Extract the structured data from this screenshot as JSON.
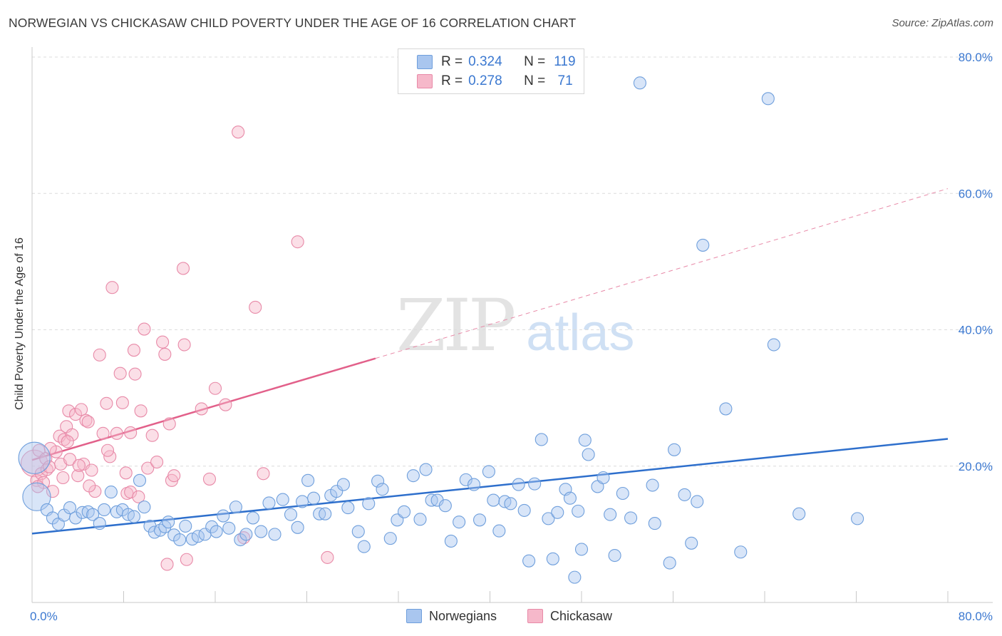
{
  "header": {
    "title": "NORWEGIAN VS CHICKASAW CHILD POVERTY UNDER THE AGE OF 16 CORRELATION CHART",
    "source": "Source: ZipAtlas.com"
  },
  "watermark": {
    "zip": "ZIP",
    "atlas": "atlas"
  },
  "legend": {
    "rows": [
      {
        "r_label": "R =",
        "r_value": "0.324",
        "n_label": "N =",
        "n_value": "119",
        "color": "#a9c6ef"
      },
      {
        "r_label": "R =",
        "r_value": "0.278",
        "n_label": "N =",
        "n_value": " 71",
        "color": "#f6b8ca"
      }
    ]
  },
  "bottom_legend": {
    "series1": "Norwegians",
    "series2": "Chickasaw"
  },
  "colors": {
    "blue_fill": "#a9c6ef",
    "blue_stroke": "#6f9fdc",
    "blue_line": "#2e6fcc",
    "pink_fill": "#f6b8ca",
    "pink_stroke": "#e88aa8",
    "pink_line": "#e2608a",
    "tick_text": "#3b78d0",
    "grid": "#dcdcdc"
  },
  "chart_data": {
    "type": "scatter",
    "title": "NORWEGIAN VS CHICKASAW CHILD POVERTY UNDER THE AGE OF 16 CORRELATION CHART",
    "xlabel": "",
    "ylabel": "Child Poverty Under the Age of 16",
    "xlim": [
      0,
      80
    ],
    "ylim": [
      0,
      80
    ],
    "x_tick_labels": [
      "0.0%",
      "80.0%"
    ],
    "y_tick_labels": [
      "20.0%",
      "40.0%",
      "60.0%",
      "80.0%"
    ],
    "y_ticks": [
      20,
      40,
      60,
      80
    ],
    "grid": "horizontal dashed",
    "legend_position": "top-center",
    "series": [
      {
        "name": "Norwegians",
        "r": 0.324,
        "n": 119,
        "trend": {
          "x": [
            0,
            80
          ],
          "y": [
            10.1,
            24.0
          ],
          "style": "solid"
        },
        "points": [
          [
            0.2,
            21.2,
            2.6
          ],
          [
            0.4,
            15.5,
            2.3
          ],
          [
            1.3,
            13.6,
            1.0
          ],
          [
            1.8,
            12.4,
            1.0
          ],
          [
            2.3,
            11.5,
            1.0
          ],
          [
            2.8,
            12.8,
            1.0
          ],
          [
            3.3,
            13.9,
            1.0
          ],
          [
            3.8,
            12.4,
            1.0
          ],
          [
            4.4,
            13.2,
            1.0
          ],
          [
            4.9,
            13.3,
            1.0
          ],
          [
            5.3,
            12.9,
            1.0
          ],
          [
            5.9,
            11.6,
            1.0
          ],
          [
            6.3,
            13.6,
            1.0
          ],
          [
            6.9,
            16.2,
            1.0
          ],
          [
            7.4,
            13.3,
            1.0
          ],
          [
            7.9,
            13.6,
            1.0
          ],
          [
            8.4,
            12.9,
            1.0
          ],
          [
            8.9,
            12.6,
            1.0
          ],
          [
            9.4,
            17.9,
            1.0
          ],
          [
            9.8,
            14.0,
            1.0
          ],
          [
            10.3,
            11.2,
            1.0
          ],
          [
            10.7,
            10.3,
            1.0
          ],
          [
            11.2,
            10.6,
            1.0
          ],
          [
            11.6,
            11.1,
            1.0
          ],
          [
            11.9,
            11.8,
            1.0
          ],
          [
            12.4,
            9.9,
            1.0
          ],
          [
            12.9,
            9.2,
            1.0
          ],
          [
            13.4,
            11.2,
            1.0
          ],
          [
            14.0,
            9.3,
            1.0
          ],
          [
            14.5,
            9.7,
            1.0
          ],
          [
            15.1,
            10.0,
            1.0
          ],
          [
            15.7,
            11.1,
            1.0
          ],
          [
            16.1,
            10.4,
            1.0
          ],
          [
            16.7,
            12.7,
            1.0
          ],
          [
            17.2,
            10.9,
            1.0
          ],
          [
            17.8,
            14.0,
            1.0
          ],
          [
            18.2,
            9.2,
            1.0
          ],
          [
            18.7,
            10.0,
            1.0
          ],
          [
            19.3,
            12.4,
            1.0
          ],
          [
            20.0,
            10.4,
            1.0
          ],
          [
            20.7,
            14.6,
            1.0
          ],
          [
            21.2,
            10.0,
            1.0
          ],
          [
            21.9,
            15.1,
            1.0
          ],
          [
            22.6,
            12.9,
            1.0
          ],
          [
            23.2,
            11.0,
            1.0
          ],
          [
            23.6,
            14.8,
            1.0
          ],
          [
            24.1,
            17.9,
            1.0
          ],
          [
            24.6,
            15.3,
            1.0
          ],
          [
            25.1,
            13.0,
            1.0
          ],
          [
            25.6,
            13.0,
            1.0
          ],
          [
            26.1,
            15.7,
            1.0
          ],
          [
            26.6,
            16.3,
            1.0
          ],
          [
            27.2,
            17.3,
            1.0
          ],
          [
            27.6,
            13.9,
            1.0
          ],
          [
            28.5,
            10.4,
            1.0
          ],
          [
            29.0,
            8.2,
            1.0
          ],
          [
            29.4,
            14.5,
            1.0
          ],
          [
            30.2,
            17.8,
            1.0
          ],
          [
            30.6,
            16.6,
            1.0
          ],
          [
            31.3,
            9.4,
            1.0
          ],
          [
            31.9,
            12.1,
            1.0
          ],
          [
            32.5,
            13.3,
            1.0
          ],
          [
            33.3,
            18.6,
            1.0
          ],
          [
            33.9,
            12.2,
            1.0
          ],
          [
            34.4,
            19.5,
            1.0
          ],
          [
            34.9,
            15.0,
            1.0
          ],
          [
            35.4,
            15.0,
            1.0
          ],
          [
            36.1,
            14.2,
            1.0
          ],
          [
            36.6,
            9.0,
            1.0
          ],
          [
            37.3,
            11.8,
            1.0
          ],
          [
            37.9,
            18.0,
            1.0
          ],
          [
            38.6,
            17.3,
            1.0
          ],
          [
            39.1,
            12.1,
            1.0
          ],
          [
            39.9,
            19.2,
            1.0
          ],
          [
            40.3,
            15.0,
            1.0
          ],
          [
            40.8,
            10.5,
            1.0
          ],
          [
            41.3,
            14.8,
            1.0
          ],
          [
            41.8,
            14.5,
            1.0
          ],
          [
            42.5,
            17.3,
            1.0
          ],
          [
            43.0,
            13.5,
            1.0
          ],
          [
            43.4,
            6.1,
            1.0
          ],
          [
            43.9,
            17.4,
            1.0
          ],
          [
            44.5,
            23.9,
            1.0
          ],
          [
            45.1,
            12.3,
            1.0
          ],
          [
            45.5,
            6.4,
            1.0
          ],
          [
            45.9,
            13.2,
            1.0
          ],
          [
            46.6,
            16.6,
            1.0
          ],
          [
            47.0,
            15.3,
            1.0
          ],
          [
            47.7,
            13.4,
            1.0
          ],
          [
            48.0,
            7.8,
            1.0
          ],
          [
            48.3,
            23.8,
            1.0
          ],
          [
            48.6,
            21.7,
            1.0
          ],
          [
            49.4,
            17.0,
            1.0
          ],
          [
            49.9,
            18.3,
            1.0
          ],
          [
            50.5,
            12.9,
            1.0
          ],
          [
            50.9,
            6.9,
            1.0
          ],
          [
            51.6,
            16.0,
            1.0
          ],
          [
            52.3,
            12.4,
            1.0
          ],
          [
            53.1,
            76.2,
            1.0
          ],
          [
            54.2,
            17.2,
            1.0
          ],
          [
            54.4,
            11.6,
            1.0
          ],
          [
            55.7,
            5.8,
            1.0
          ],
          [
            56.1,
            22.4,
            1.0
          ],
          [
            57.0,
            15.8,
            1.0
          ],
          [
            57.6,
            8.7,
            1.0
          ],
          [
            58.1,
            14.8,
            1.0
          ],
          [
            58.6,
            52.4,
            1.0
          ],
          [
            60.6,
            28.4,
            1.0
          ],
          [
            61.9,
            7.4,
            1.0
          ],
          [
            64.3,
            73.9,
            1.0
          ],
          [
            64.8,
            37.8,
            1.0
          ],
          [
            67.0,
            13.0,
            1.0
          ],
          [
            72.1,
            12.3,
            1.0
          ],
          [
            47.4,
            3.7,
            1.0
          ]
        ]
      },
      {
        "name": "Chickasaw",
        "r": 0.278,
        "n": 71,
        "trend": {
          "x": [
            0,
            30
          ],
          "y": [
            20.9,
            35.8
          ],
          "style": "solid",
          "extension": {
            "x": [
              30,
              80
            ],
            "y": [
              35.8,
              60.7
            ],
            "style": "dashed"
          }
        },
        "points": [
          [
            0.2,
            20.4,
            2.2
          ],
          [
            0.4,
            17.9,
            1.0
          ],
          [
            0.6,
            22.3,
            1.0
          ],
          [
            0.8,
            18.9,
            1.0
          ],
          [
            1.0,
            17.6,
            1.0
          ],
          [
            1.2,
            21.1,
            1.0
          ],
          [
            1.3,
            19.5,
            1.0
          ],
          [
            1.5,
            19.9,
            1.0
          ],
          [
            1.8,
            16.3,
            1.0
          ],
          [
            2.1,
            22.1,
            1.0
          ],
          [
            2.4,
            24.4,
            1.0
          ],
          [
            2.5,
            20.3,
            1.0
          ],
          [
            2.8,
            23.9,
            1.0
          ],
          [
            3.0,
            25.8,
            1.0
          ],
          [
            3.2,
            28.1,
            1.0
          ],
          [
            3.3,
            21.0,
            1.0
          ],
          [
            3.5,
            24.6,
            1.0
          ],
          [
            3.8,
            27.6,
            1.0
          ],
          [
            4.0,
            18.6,
            1.0
          ],
          [
            4.3,
            28.3,
            1.0
          ],
          [
            4.5,
            20.3,
            1.0
          ],
          [
            4.7,
            26.7,
            1.0
          ],
          [
            4.9,
            26.5,
            1.0
          ],
          [
            5.2,
            19.4,
            1.0
          ],
          [
            5.5,
            16.3,
            1.0
          ],
          [
            5.9,
            36.3,
            1.0
          ],
          [
            6.2,
            24.8,
            1.0
          ],
          [
            6.5,
            29.2,
            1.0
          ],
          [
            6.8,
            21.4,
            1.0
          ],
          [
            7.0,
            46.2,
            1.0
          ],
          [
            7.4,
            24.8,
            1.0
          ],
          [
            7.7,
            33.6,
            1.0
          ],
          [
            7.9,
            29.3,
            1.0
          ],
          [
            8.2,
            19.0,
            1.0
          ],
          [
            8.3,
            16.0,
            1.0
          ],
          [
            8.6,
            16.2,
            1.0
          ],
          [
            8.6,
            24.9,
            1.0
          ],
          [
            8.9,
            37.0,
            1.0
          ],
          [
            9.0,
            33.5,
            1.0
          ],
          [
            9.5,
            28.1,
            1.0
          ],
          [
            9.8,
            40.1,
            1.0
          ],
          [
            10.1,
            19.7,
            1.0
          ],
          [
            10.5,
            24.5,
            1.0
          ],
          [
            10.9,
            20.6,
            1.0
          ],
          [
            11.4,
            38.2,
            1.0
          ],
          [
            11.6,
            36.4,
            1.0
          ],
          [
            11.8,
            5.6,
            1.0
          ],
          [
            12.0,
            26.2,
            1.0
          ],
          [
            12.2,
            17.9,
            1.0
          ],
          [
            12.4,
            18.6,
            1.0
          ],
          [
            13.2,
            49.0,
            1.0
          ],
          [
            13.3,
            37.8,
            1.0
          ],
          [
            13.5,
            6.3,
            1.0
          ],
          [
            14.8,
            28.4,
            1.0
          ],
          [
            15.5,
            18.1,
            1.0
          ],
          [
            16.0,
            31.4,
            1.0
          ],
          [
            16.9,
            29.0,
            1.0
          ],
          [
            18.0,
            69.0,
            1.0
          ],
          [
            18.5,
            9.5,
            1.0
          ],
          [
            19.5,
            43.3,
            1.0
          ],
          [
            20.2,
            18.9,
            1.0
          ],
          [
            23.2,
            52.9,
            1.0
          ],
          [
            25.8,
            6.6,
            1.0
          ],
          [
            6.6,
            22.3,
            1.0
          ],
          [
            5.0,
            17.1,
            1.0
          ],
          [
            3.1,
            23.6,
            1.0
          ],
          [
            0.5,
            17.0,
            1.0
          ],
          [
            1.6,
            22.6,
            1.0
          ],
          [
            2.7,
            18.3,
            1.0
          ],
          [
            4.1,
            20.1,
            1.0
          ],
          [
            9.3,
            15.5,
            1.0
          ]
        ]
      }
    ]
  }
}
